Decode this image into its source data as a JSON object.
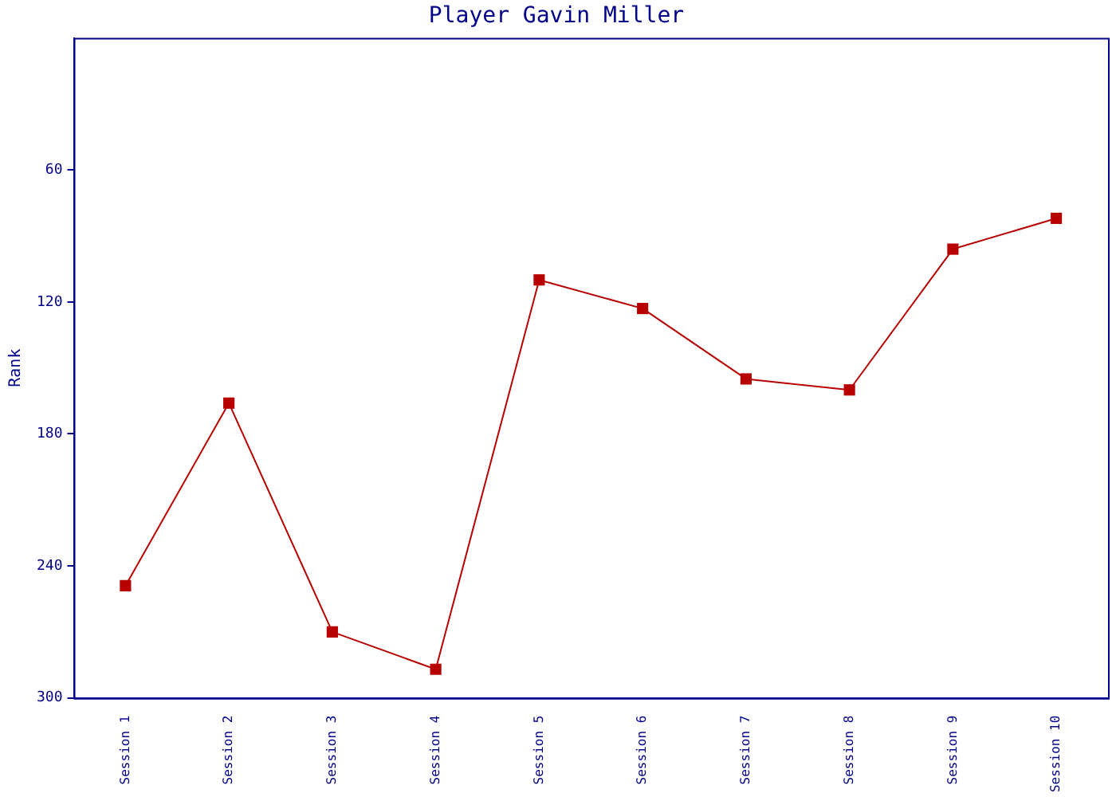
{
  "chart_data": {
    "type": "line",
    "title": "Player Gavin Miller",
    "ylabel": "Rank",
    "categories": [
      "Session 1",
      "Session 2",
      "Session 3",
      "Session 4",
      "Session 5",
      "Session 6",
      "Session 7",
      "Session 8",
      "Session 9",
      "Session 10"
    ],
    "series": [
      {
        "color": "#b80000",
        "values": [
          249,
          166,
          270,
          287,
          110,
          123,
          155,
          160,
          96,
          82
        ]
      }
    ],
    "ylim": [
      300,
      0
    ],
    "yticks": [
      60,
      120,
      180,
      240,
      300
    ],
    "grid": false,
    "legend": false,
    "marker": "square",
    "line_style": "solid"
  }
}
